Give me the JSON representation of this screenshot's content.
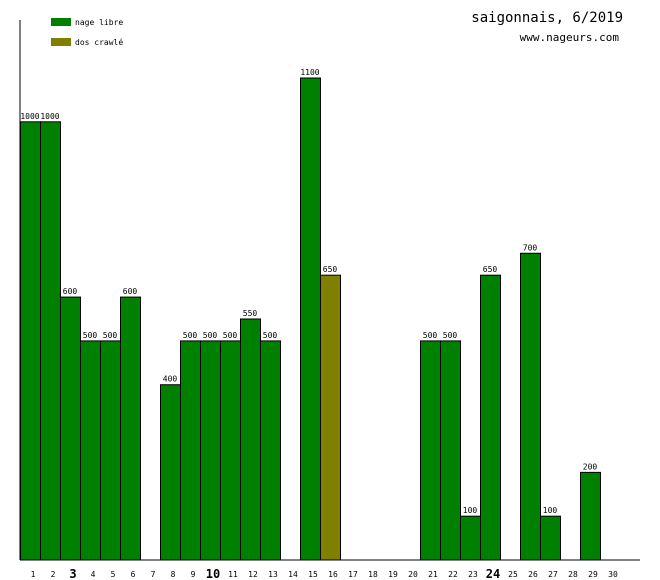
{
  "title": "saigonnais, 6/2019",
  "subtitle": "www.nageurs.com",
  "colors": {
    "nage_libre": "#008000",
    "dos_crawle": "#808000",
    "axis": "#000000"
  },
  "legend": [
    {
      "label": "nage libre",
      "color": "#008000"
    },
    {
      "label": "dos crawlé",
      "color": "#808000"
    }
  ],
  "chart_data": {
    "type": "bar",
    "categories": [
      "1",
      "2",
      "3",
      "4",
      "5",
      "6",
      "7",
      "8",
      "9",
      "10",
      "11",
      "12",
      "13",
      "14",
      "15",
      "16",
      "17",
      "18",
      "19",
      "20",
      "21",
      "22",
      "23",
      "24",
      "25",
      "26",
      "27",
      "28",
      "29",
      "30"
    ],
    "bold_ticks": [
      "3",
      "10",
      "24"
    ],
    "series": [
      {
        "name": "nage libre",
        "color": "#008000",
        "values": [
          1000,
          1000,
          600,
          500,
          500,
          600,
          0,
          400,
          500,
          500,
          500,
          550,
          500,
          0,
          1100,
          0,
          0,
          0,
          0,
          0,
          500,
          500,
          100,
          650,
          0,
          700,
          100,
          0,
          200,
          0
        ]
      },
      {
        "name": "dos crawlé",
        "color": "#808000",
        "values": [
          0,
          0,
          0,
          0,
          0,
          0,
          0,
          0,
          0,
          0,
          0,
          0,
          0,
          0,
          0,
          650,
          0,
          0,
          0,
          0,
          0,
          0,
          0,
          0,
          0,
          0,
          0,
          0,
          0,
          0
        ]
      }
    ],
    "ylim": [
      0,
      1100
    ],
    "grid": false,
    "legend_position": "top-left"
  }
}
